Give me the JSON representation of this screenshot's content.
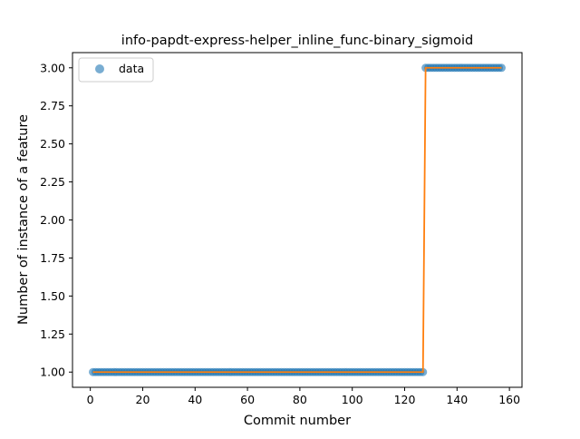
{
  "chart_data": {
    "type": "scatter",
    "title": "info-papdt-express-helper_inline_func-binary_sigmoid",
    "xlabel": "Commit number",
    "ylabel": "Number of instance of a feature",
    "xlim": [
      -6.8,
      164.8
    ],
    "ylim": [
      0.9,
      3.1
    ],
    "xticks": [
      0,
      20,
      40,
      60,
      80,
      100,
      120,
      140,
      160
    ],
    "yticks": [
      1.0,
      1.25,
      1.5,
      1.75,
      2.0,
      2.25,
      2.5,
      2.75,
      3.0
    ],
    "xtick_labels": [
      "0",
      "20",
      "40",
      "60",
      "80",
      "100",
      "120",
      "140",
      "160"
    ],
    "ytick_labels": [
      "1.00",
      "1.25",
      "1.50",
      "1.75",
      "2.00",
      "2.25",
      "2.50",
      "2.75",
      "3.00"
    ],
    "grid": false,
    "legend": {
      "placement": "top-left",
      "entries": [
        "data"
      ]
    },
    "series": [
      {
        "name": "data",
        "style": "markers",
        "color": "#1f77b4",
        "segments": [
          {
            "x_start": 1,
            "x_end": 127,
            "y": 1
          },
          {
            "x_start": 128,
            "x_end": 157,
            "y": 3
          }
        ]
      },
      {
        "style": "line",
        "color": "#ff7f0e",
        "x": [
          1,
          127,
          128,
          157
        ],
        "y": [
          1,
          1,
          3,
          3
        ]
      }
    ]
  }
}
